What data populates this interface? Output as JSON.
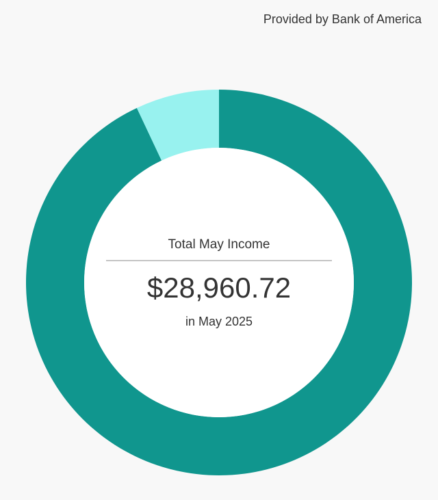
{
  "header": {
    "provider": "Provided by Bank of America"
  },
  "chart_data": {
    "type": "pie",
    "donut": true,
    "values": [
      93,
      7
    ],
    "colors": [
      "#10968e",
      "#98f2ef"
    ],
    "center": {
      "title": "Total May Income",
      "amount": "$28,960.72",
      "period": "in May 2025"
    }
  }
}
